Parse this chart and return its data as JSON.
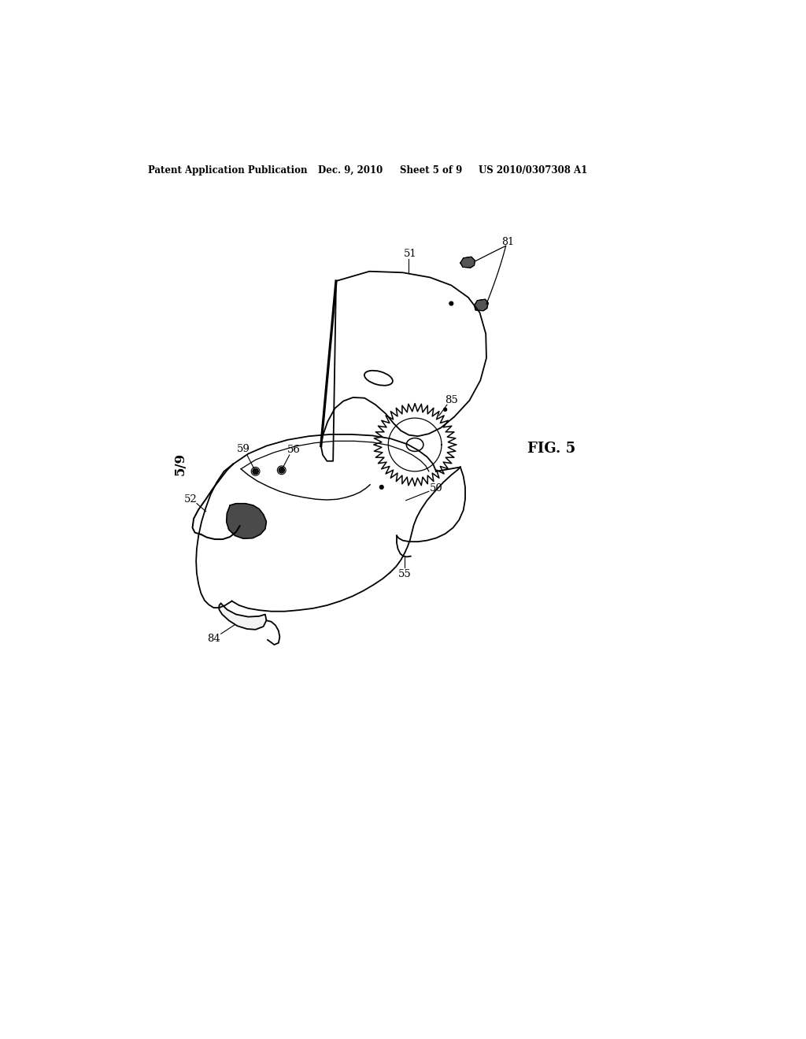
{
  "page_width": 10.24,
  "page_height": 13.2,
  "background_color": "#ffffff",
  "header_text1": "Patent Application Publication",
  "header_text2": "Dec. 9, 2010",
  "header_text3": "Sheet 5 of 9",
  "header_text4": "US 2010/0307308 A1",
  "sheet_label": "5/9",
  "fig_label": "FIG. 5",
  "lw": 1.3
}
